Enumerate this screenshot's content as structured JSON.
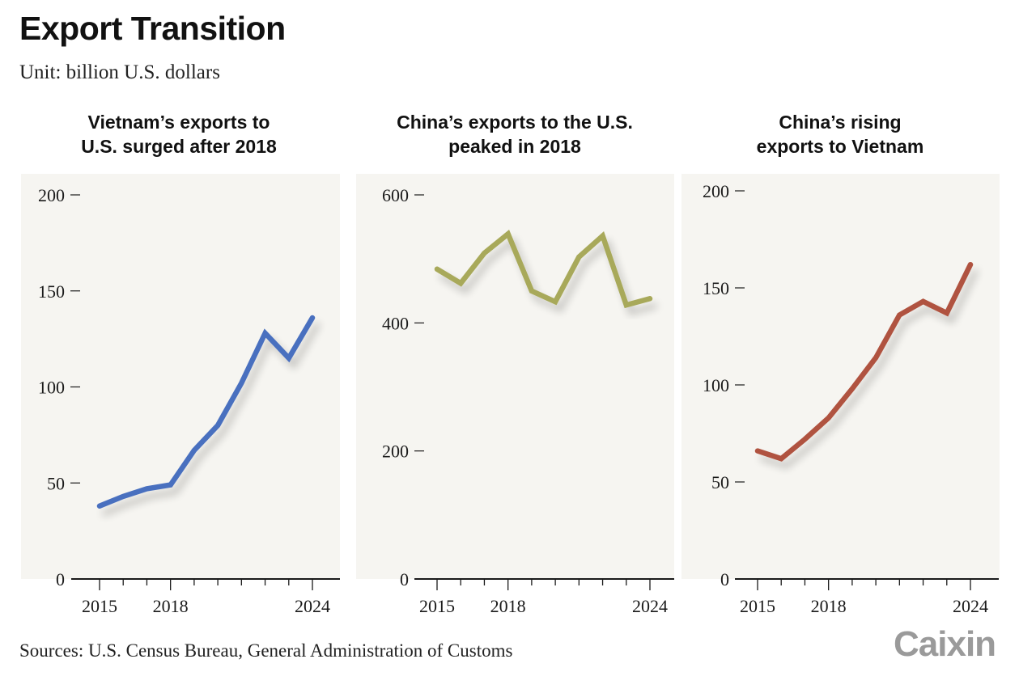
{
  "header": {
    "title": "Export Transition",
    "subtitle": "Unit: billion U.S. dollars"
  },
  "footer": {
    "sources": "Sources: U.S. Census Bureau, General Administration of Customs",
    "logo": "Caixin"
  },
  "colors": {
    "panel_background": "#f6f5f1",
    "axis": "#1a1a1a"
  },
  "chart_data": [
    {
      "type": "line",
      "title": "Vietnam’s exports to U.S. surged after 2018",
      "title_lines": [
        "Vietnam’s exports to",
        "U.S. surged after 2018"
      ],
      "xlabel": "",
      "ylabel": "",
      "x": [
        2015,
        2016,
        2017,
        2018,
        2019,
        2020,
        2021,
        2022,
        2023,
        2024
      ],
      "x_tick_labels": [
        "2015",
        "2018",
        "2024"
      ],
      "x_tick_values": [
        2015,
        2018,
        2024
      ],
      "y_ticks": [
        0,
        50,
        100,
        150,
        200
      ],
      "ylim": [
        0,
        200
      ],
      "grid": false,
      "series": [
        {
          "name": "Vietnam exports to U.S.",
          "color": "#4a6fbf",
          "values": [
            38,
            43,
            47,
            49,
            67,
            80,
            102,
            128,
            115,
            136
          ]
        }
      ]
    },
    {
      "type": "line",
      "title": "China’s exports to the U.S. peaked in 2018",
      "title_lines": [
        "China’s exports to the U.S.",
        "peaked in 2018"
      ],
      "xlabel": "",
      "ylabel": "",
      "x": [
        2015,
        2016,
        2017,
        2018,
        2019,
        2020,
        2021,
        2022,
        2023,
        2024
      ],
      "x_tick_labels": [
        "2015",
        "2018",
        "2024"
      ],
      "x_tick_values": [
        2015,
        2018,
        2024
      ],
      "y_ticks": [
        0,
        200,
        400,
        600
      ],
      "ylim": [
        0,
        600
      ],
      "grid": false,
      "series": [
        {
          "name": "China exports to U.S.",
          "color": "#a8a95a",
          "values": [
            484,
            462,
            509,
            539,
            450,
            433,
            503,
            536,
            428,
            438
          ]
        }
      ]
    },
    {
      "type": "line",
      "title": "China’s rising exports to Vietnam",
      "title_lines": [
        "China’s rising",
        "exports to Vietnam"
      ],
      "xlabel": "",
      "ylabel": "",
      "x": [
        2015,
        2016,
        2017,
        2018,
        2019,
        2020,
        2021,
        2022,
        2023,
        2024
      ],
      "x_tick_labels": [
        "2015",
        "2018",
        "2024"
      ],
      "x_tick_values": [
        2015,
        2018,
        2024
      ],
      "y_ticks": [
        0,
        50,
        100,
        150,
        200
      ],
      "ylim": [
        0,
        200
      ],
      "grid": false,
      "series": [
        {
          "name": "China exports to Vietnam",
          "color": "#b0533f",
          "values": [
            66,
            62,
            72,
            83,
            98,
            114,
            136,
            143,
            137,
            162
          ]
        }
      ]
    }
  ]
}
